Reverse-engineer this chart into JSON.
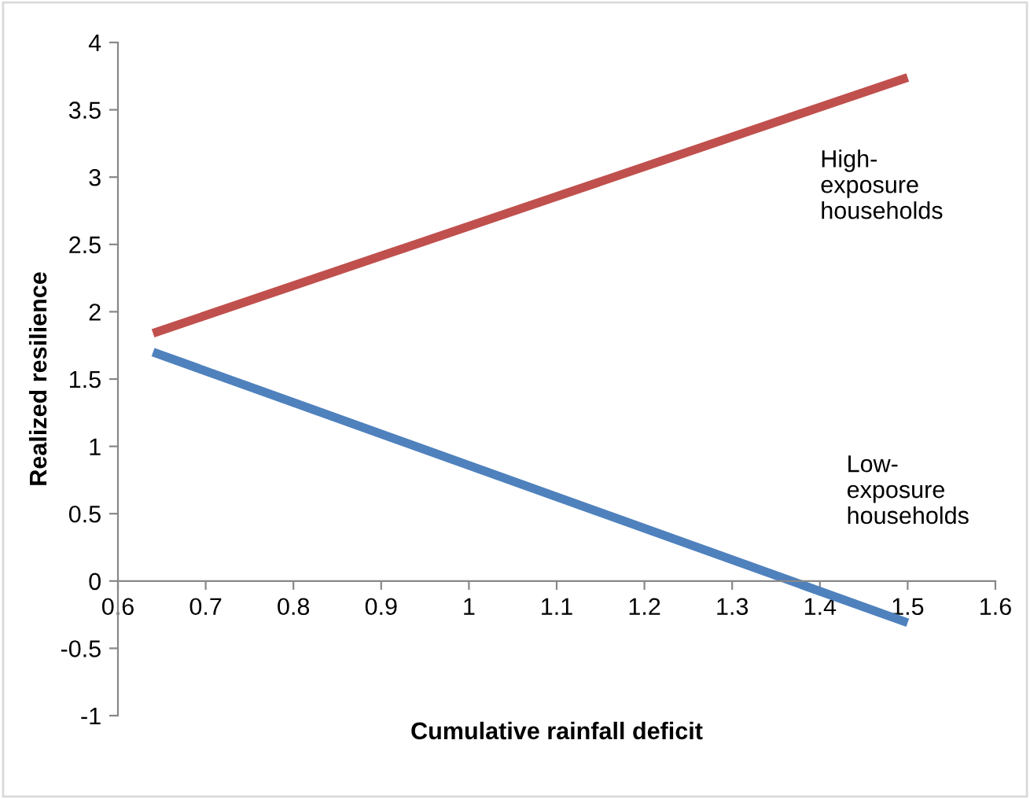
{
  "chart_data": {
    "type": "line",
    "xlabel": "Cumulative rainfall deficit",
    "ylabel": "Realized resilience",
    "xlim": [
      0.6,
      1.6
    ],
    "xticks": [
      0.6,
      0.7,
      0.8,
      0.9,
      1,
      1.1,
      1.2,
      1.3,
      1.4,
      1.5,
      1.6
    ],
    "ylim": [
      -1,
      4
    ],
    "yticks": [
      -1,
      -0.5,
      0,
      0.5,
      1,
      1.5,
      2,
      2.5,
      3,
      3.5,
      4
    ],
    "grid": false,
    "legend": false,
    "marker": "none",
    "line_style": "solid",
    "x": [
      0.64,
      1.5
    ],
    "series": [
      {
        "color": "#c0504d",
        "values": [
          1.84,
          3.74
        ]
      },
      {
        "color": "#4f81bd",
        "values": [
          1.7,
          -0.31
        ]
      }
    ],
    "annotations": [
      "High-\nexposure\nhouseholds",
      "Low-\nexposure\nhouseholds"
    ]
  }
}
